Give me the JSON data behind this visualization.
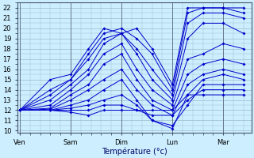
{
  "xlabel": "Température (°c)",
  "bg_color": "#cceeff",
  "grid_color": "#99bbcc",
  "line_color": "#0000cc",
  "marker": "D",
  "marker_size": 1.8,
  "ylim": [
    9.8,
    22.5
  ],
  "yticks": [
    10,
    11,
    12,
    13,
    14,
    15,
    16,
    17,
    18,
    19,
    20,
    21,
    22
  ],
  "day_labels": [
    "Ven",
    "Sam",
    "Dim",
    "Lun",
    "Mar"
  ],
  "day_x": [
    0.0,
    1.0,
    2.0,
    3.0,
    4.0
  ],
  "xlim": [
    -0.05,
    4.55
  ],
  "num_lines": 11,
  "lines": [
    {
      "pts": [
        [
          0,
          12
        ],
        [
          0.6,
          12.0
        ],
        [
          1.0,
          11.8
        ],
        [
          1.35,
          11.5
        ],
        [
          1.65,
          12.0
        ],
        [
          2.0,
          12.0
        ],
        [
          2.3,
          12.0
        ],
        [
          2.6,
          12.0
        ],
        [
          3.0,
          12.0
        ],
        [
          3.3,
          13.5
        ],
        [
          3.6,
          13.5
        ],
        [
          4.0,
          13.5
        ],
        [
          4.4,
          13.5
        ]
      ]
    },
    {
      "pts": [
        [
          0,
          12
        ],
        [
          0.6,
          12.0
        ],
        [
          1.0,
          12.0
        ],
        [
          1.35,
          12.0
        ],
        [
          1.65,
          12.5
        ],
        [
          2.0,
          12.5
        ],
        [
          2.3,
          12.0
        ],
        [
          2.6,
          11.5
        ],
        [
          3.0,
          11.5
        ],
        [
          3.3,
          13.0
        ],
        [
          3.6,
          14.0
        ],
        [
          4.0,
          14.0
        ],
        [
          4.4,
          14.0
        ]
      ]
    },
    {
      "pts": [
        [
          0,
          12
        ],
        [
          0.6,
          12.0
        ],
        [
          1.0,
          12.2
        ],
        [
          1.35,
          12.5
        ],
        [
          1.65,
          13.0
        ],
        [
          2.0,
          13.5
        ],
        [
          2.3,
          12.5
        ],
        [
          2.6,
          11.0
        ],
        [
          3.0,
          10.5
        ],
        [
          3.3,
          12.5
        ],
        [
          3.6,
          14.5
        ],
        [
          4.0,
          14.5
        ],
        [
          4.4,
          14.5
        ]
      ]
    },
    {
      "pts": [
        [
          0,
          12
        ],
        [
          0.6,
          12.0
        ],
        [
          1.0,
          12.5
        ],
        [
          1.35,
          13.0
        ],
        [
          1.65,
          14.0
        ],
        [
          2.0,
          15.0
        ],
        [
          2.3,
          13.0
        ],
        [
          2.6,
          11.0
        ],
        [
          3.0,
          10.2
        ],
        [
          3.3,
          13.5
        ],
        [
          3.6,
          15.0
        ],
        [
          4.0,
          15.5
        ],
        [
          4.4,
          15.0
        ]
      ]
    },
    {
      "pts": [
        [
          0,
          12
        ],
        [
          0.6,
          12.1
        ],
        [
          1.0,
          13.0
        ],
        [
          1.35,
          14.0
        ],
        [
          1.65,
          15.0
        ],
        [
          2.0,
          16.0
        ],
        [
          2.3,
          14.0
        ],
        [
          2.6,
          12.5
        ],
        [
          3.0,
          11.5
        ],
        [
          3.3,
          14.5
        ],
        [
          3.6,
          15.5
        ],
        [
          4.0,
          16.0
        ],
        [
          4.4,
          15.5
        ]
      ]
    },
    {
      "pts": [
        [
          0,
          12
        ],
        [
          0.6,
          12.2
        ],
        [
          1.0,
          13.5
        ],
        [
          1.35,
          14.5
        ],
        [
          1.65,
          16.5
        ],
        [
          2.0,
          17.5
        ],
        [
          2.3,
          15.0
        ],
        [
          2.6,
          13.0
        ],
        [
          3.0,
          12.0
        ],
        [
          3.3,
          15.5
        ],
        [
          3.6,
          16.5
        ],
        [
          4.0,
          17.0
        ],
        [
          4.4,
          16.5
        ]
      ]
    },
    {
      "pts": [
        [
          0,
          12
        ],
        [
          0.6,
          12.5
        ],
        [
          1.0,
          14.0
        ],
        [
          1.35,
          15.5
        ],
        [
          1.65,
          17.5
        ],
        [
          2.0,
          18.5
        ],
        [
          2.3,
          16.0
        ],
        [
          2.6,
          14.0
        ],
        [
          3.0,
          12.5
        ],
        [
          3.3,
          17.0
        ],
        [
          3.6,
          17.5
        ],
        [
          4.0,
          18.5
        ],
        [
          4.4,
          18.0
        ]
      ]
    },
    {
      "pts": [
        [
          0,
          12
        ],
        [
          0.6,
          13.0
        ],
        [
          1.0,
          14.5
        ],
        [
          1.35,
          16.0
        ],
        [
          1.65,
          18.5
        ],
        [
          2.0,
          19.5
        ],
        [
          2.3,
          17.5
        ],
        [
          2.6,
          15.0
        ],
        [
          3.0,
          13.0
        ],
        [
          3.3,
          19.0
        ],
        [
          3.6,
          20.5
        ],
        [
          4.0,
          20.5
        ],
        [
          4.4,
          19.5
        ]
      ]
    },
    {
      "pts": [
        [
          0,
          12
        ],
        [
          0.6,
          13.5
        ],
        [
          1.0,
          15.0
        ],
        [
          1.35,
          17.0
        ],
        [
          1.65,
          19.0
        ],
        [
          2.0,
          19.5
        ],
        [
          2.3,
          18.0
        ],
        [
          2.6,
          16.0
        ],
        [
          3.0,
          13.5
        ],
        [
          3.3,
          20.5
        ],
        [
          3.6,
          21.5
        ],
        [
          4.0,
          21.5
        ],
        [
          4.4,
          21.0
        ]
      ]
    },
    {
      "pts": [
        [
          0,
          12
        ],
        [
          0.6,
          14.0
        ],
        [
          1.0,
          15.0
        ],
        [
          1.35,
          17.5
        ],
        [
          1.65,
          19.5
        ],
        [
          2.0,
          20.0
        ],
        [
          2.3,
          19.0
        ],
        [
          2.6,
          17.5
        ],
        [
          3.0,
          14.0
        ],
        [
          3.3,
          21.5
        ],
        [
          3.6,
          22.0
        ],
        [
          4.0,
          22.0
        ],
        [
          4.4,
          21.5
        ]
      ]
    },
    {
      "pts": [
        [
          0,
          12
        ],
        [
          0.6,
          15.0
        ],
        [
          1.0,
          15.5
        ],
        [
          1.35,
          18.0
        ],
        [
          1.65,
          20.0
        ],
        [
          2.0,
          19.5
        ],
        [
          2.3,
          20.0
        ],
        [
          2.6,
          18.0
        ],
        [
          3.0,
          14.5
        ],
        [
          3.3,
          22.0
        ],
        [
          3.6,
          22.0
        ],
        [
          4.0,
          22.0
        ],
        [
          4.4,
          22.0
        ]
      ]
    }
  ]
}
